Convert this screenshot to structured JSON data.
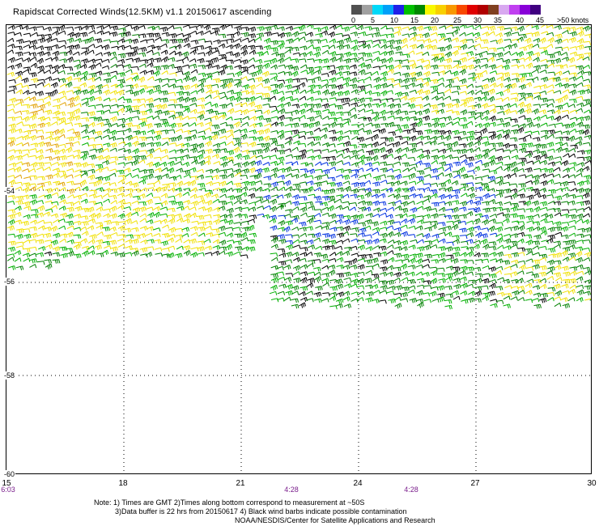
{
  "title": "Rapidscat Corrected Winds(12.5KM) v1.1 20150617 ascending",
  "legend": {
    "labels": [
      "0",
      "5",
      "10",
      "15",
      "20",
      "25",
      "30",
      "35",
      "40",
      "45",
      ">50 knots"
    ],
    "colors": [
      "#505050",
      "#a0a0a0",
      "#00d8f8",
      "#00a0f8",
      "#2020e8",
      "#00c000",
      "#008800",
      "#f8f800",
      "#f8d000",
      "#f89800",
      "#f84800",
      "#e00000",
      "#b00000",
      "#804020",
      "#d8a8f0",
      "#c040f0",
      "#8800d8",
      "#400080"
    ]
  },
  "x_axis": {
    "ticks": [
      "15",
      "18",
      "21",
      "24",
      "27",
      "30"
    ],
    "times": [
      {
        "label": "6:03",
        "at_lon": "15"
      },
      {
        "label": "4:28",
        "at_lon": "22.3"
      },
      {
        "label": "4:28",
        "at_lon": "25.4"
      }
    ]
  },
  "y_axis": {
    "ticks": [
      "-54",
      "-56",
      "-58",
      "-60"
    ]
  },
  "notes": {
    "line1": "Note: 1) Times are GMT 2)Times along bottom correspond to measurement at ~50S",
    "line2": "3)Data buffer is 22 hrs from 20150617 4) Black wind barbs indicate possible contamination",
    "line3": "NOAA/NESDIS/Center for Satellite Applications and Research"
  },
  "barb_colors": {
    "black": "#000000",
    "green": "#00b000",
    "dark_green": "#008000",
    "yellow": "#f0e000",
    "orange": "#e0a000",
    "blue": "#0030e0"
  }
}
